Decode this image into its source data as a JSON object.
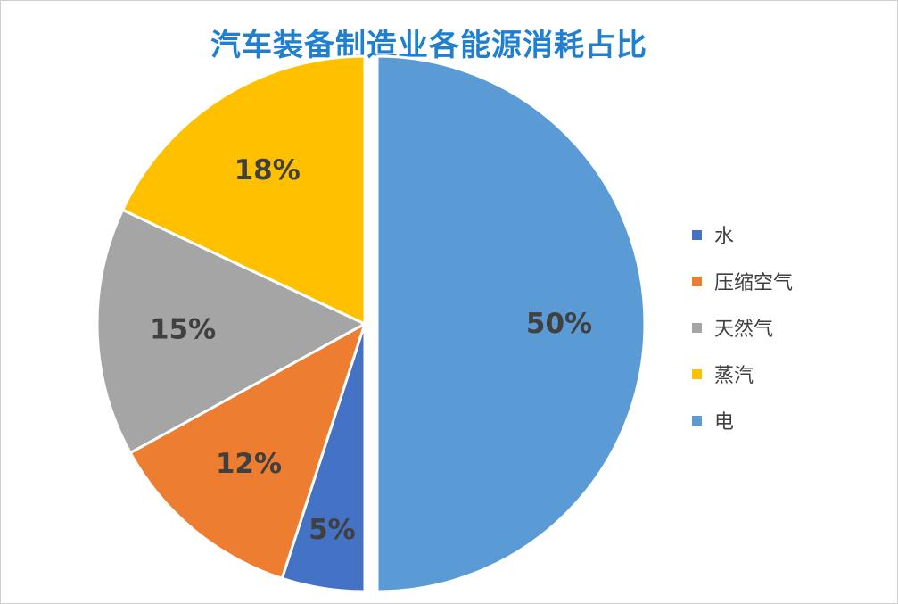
{
  "chart_data": {
    "type": "pie",
    "title": "汽车装备制造业各能源消耗占比",
    "legend_position": "right",
    "categories": [
      "水",
      "压缩空气",
      "天然气",
      "蒸汽",
      "电"
    ],
    "values": [
      5,
      12,
      15,
      18,
      50
    ],
    "labels": [
      "5%",
      "12%",
      "15%",
      "18%",
      "50%"
    ],
    "colors": [
      "#4472c4",
      "#ed7d31",
      "#a5a5a5",
      "#ffc000",
      "#5b9bd5"
    ]
  }
}
